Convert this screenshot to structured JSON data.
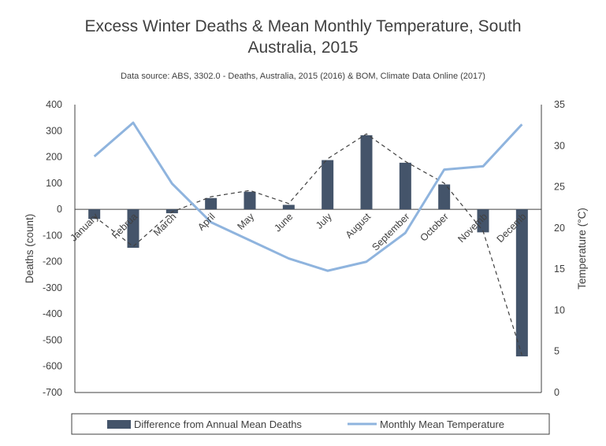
{
  "chart_data": {
    "type": "bar",
    "title": "Excess Winter Deaths & Mean Monthly Temperature, South Australia, 2015",
    "subtitle": "Data source: ABS, 3302.0 - Deaths, Australia, 2015 (2016) & BOM, Climate Data Online (2017)",
    "categories": [
      "January",
      "February",
      "March",
      "April",
      "May",
      "June",
      "July",
      "August",
      "September",
      "October",
      "November",
      "December"
    ],
    "category_labels_shown": [
      "January",
      "Februa",
      "March",
      "April",
      "May",
      "June",
      "July",
      "August",
      "September",
      "October",
      "Novemb",
      "Decemb"
    ],
    "series": [
      {
        "name": "Difference from Annual Mean Deaths",
        "type": "bar",
        "axis": "left",
        "color": "#44546a",
        "values": [
          -37,
          -147,
          -15,
          43,
          67,
          17,
          188,
          283,
          178,
          95,
          -88,
          -562
        ]
      },
      {
        "name": "Monthly Mean Temperature",
        "type": "line",
        "axis": "right",
        "color": "#8fb4de",
        "values": [
          28.7,
          32.8,
          25.4,
          20.7,
          18.5,
          16.3,
          14.8,
          15.9,
          19.4,
          27.1,
          27.5,
          32.6
        ]
      },
      {
        "type": "line",
        "style": "dashed",
        "axis": "left",
        "color": "#404040",
        "values": [
          -27,
          -142,
          -10,
          48,
          72,
          22,
          193,
          288,
          183,
          100,
          -83,
          -557
        ]
      }
    ],
    "ylabel": "Deaths (count)",
    "ylim": [
      -700,
      400
    ],
    "yticks": [
      -700,
      -600,
      -500,
      -400,
      -300,
      -200,
      -100,
      0,
      100,
      200,
      300,
      400
    ],
    "y2label": "Temperature (°C)",
    "y2lim": [
      0,
      35
    ],
    "y2ticks": [
      0,
      5,
      10,
      15,
      20,
      25,
      30,
      35
    ],
    "grid": false,
    "legend_position": "bottom"
  }
}
